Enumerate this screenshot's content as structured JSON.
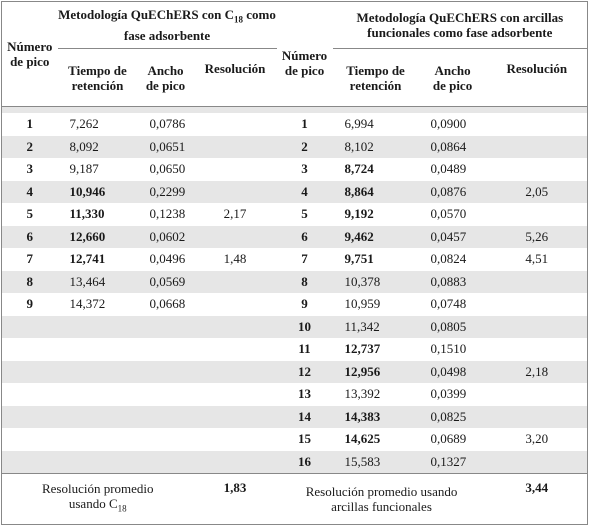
{
  "headers": {
    "peak": "Número de pico",
    "group_left": "Metodología QuEChERS con C18 como fase adsorbente",
    "group_left_parts": [
      "Metodología QuEChERS con C",
      "18",
      " como fase adsorbente"
    ],
    "group_right": "Metodología QuEChERS con arcillas funcionales como fase adsorbente",
    "retention": "Tiempo de retención",
    "width": "Ancho de pico",
    "resolution": "Resolución"
  },
  "rows": [
    {
      "l_peak": "1",
      "l_rt": "7,262",
      "l_rt_bold": false,
      "l_w": "0,0786",
      "l_res": "",
      "r_peak": "1",
      "r_rt": "6,994",
      "r_rt_bold": false,
      "r_w": "0,0900",
      "r_res": ""
    },
    {
      "l_peak": "2",
      "l_rt": "8,092",
      "l_rt_bold": false,
      "l_w": "0,0651",
      "l_res": "",
      "r_peak": "2",
      "r_rt": "8,102",
      "r_rt_bold": false,
      "r_w": "0,0864",
      "r_res": ""
    },
    {
      "l_peak": "3",
      "l_rt": "9,187",
      "l_rt_bold": false,
      "l_w": "0,0650",
      "l_res": "",
      "r_peak": "3",
      "r_rt": "8,724",
      "r_rt_bold": true,
      "r_w": "0,0489",
      "r_res": ""
    },
    {
      "l_peak": "4",
      "l_rt": "10,946",
      "l_rt_bold": true,
      "l_w": "0,2299",
      "l_res": "",
      "r_peak": "4",
      "r_rt": "8,864",
      "r_rt_bold": true,
      "r_w": "0,0876",
      "r_res": "2,05"
    },
    {
      "l_peak": "5",
      "l_rt": "11,330",
      "l_rt_bold": true,
      "l_w": "0,1238",
      "l_res": "2,17",
      "r_peak": "5",
      "r_rt": "9,192",
      "r_rt_bold": true,
      "r_w": "0,0570",
      "r_res": ""
    },
    {
      "l_peak": "6",
      "l_rt": "12,660",
      "l_rt_bold": true,
      "l_w": "0,0602",
      "l_res": "",
      "r_peak": "6",
      "r_rt": "9,462",
      "r_rt_bold": true,
      "r_w": "0,0457",
      "r_res": "5,26"
    },
    {
      "l_peak": "7",
      "l_rt": "12,741",
      "l_rt_bold": true,
      "l_w": "0,0496",
      "l_res": "1,48",
      "r_peak": "7",
      "r_rt": "9,751",
      "r_rt_bold": true,
      "r_w": "0,0824",
      "r_res": "4,51"
    },
    {
      "l_peak": "8",
      "l_rt": "13,464",
      "l_rt_bold": false,
      "l_w": "0,0569",
      "l_res": "",
      "r_peak": "8",
      "r_rt": "10,378",
      "r_rt_bold": false,
      "r_w": "0,0883",
      "r_res": ""
    },
    {
      "l_peak": "9",
      "l_rt": "14,372",
      "l_rt_bold": false,
      "l_w": "0,0668",
      "l_res": "",
      "r_peak": "9",
      "r_rt": "10,959",
      "r_rt_bold": false,
      "r_w": "0,0748",
      "r_res": ""
    },
    {
      "l_peak": "",
      "l_rt": "",
      "l_rt_bold": false,
      "l_w": "",
      "l_res": "",
      "r_peak": "10",
      "r_rt": "11,342",
      "r_rt_bold": false,
      "r_w": "0,0805",
      "r_res": ""
    },
    {
      "l_peak": "",
      "l_rt": "",
      "l_rt_bold": false,
      "l_w": "",
      "l_res": "",
      "r_peak": "11",
      "r_rt": "12,737",
      "r_rt_bold": true,
      "r_w": "0,1510",
      "r_res": ""
    },
    {
      "l_peak": "",
      "l_rt": "",
      "l_rt_bold": false,
      "l_w": "",
      "l_res": "",
      "r_peak": "12",
      "r_rt": "12,956",
      "r_rt_bold": true,
      "r_w": "0,0498",
      "r_res": "2,18"
    },
    {
      "l_peak": "",
      "l_rt": "",
      "l_rt_bold": false,
      "l_w": "",
      "l_res": "",
      "r_peak": "13",
      "r_rt": "13,392",
      "r_rt_bold": false,
      "r_w": "0,0399",
      "r_res": ""
    },
    {
      "l_peak": "",
      "l_rt": "",
      "l_rt_bold": false,
      "l_w": "",
      "l_res": "",
      "r_peak": "14",
      "r_rt": "14,383",
      "r_rt_bold": true,
      "r_w": "0,0825",
      "r_res": ""
    },
    {
      "l_peak": "",
      "l_rt": "",
      "l_rt_bold": false,
      "l_w": "",
      "l_res": "",
      "r_peak": "15",
      "r_rt": "14,625",
      "r_rt_bold": true,
      "r_w": "0,0689",
      "r_res": "3,20"
    },
    {
      "l_peak": "",
      "l_rt": "",
      "l_rt_bold": false,
      "l_w": "",
      "l_res": "",
      "r_peak": "16",
      "r_rt": "15,583",
      "r_rt_bold": false,
      "r_w": "0,1327",
      "r_res": ""
    }
  ],
  "summary": {
    "left_label": "Resolución promedio usando C18",
    "left_label_parts": [
      "Resolución promedio",
      "usando C",
      "18"
    ],
    "left_value": "1,83",
    "right_label": "Resolución promedio usando arcillas funcionales",
    "right_value": "3,44"
  },
  "colors": {
    "row_shade": "#e6e6e6",
    "border": "#888888"
  }
}
